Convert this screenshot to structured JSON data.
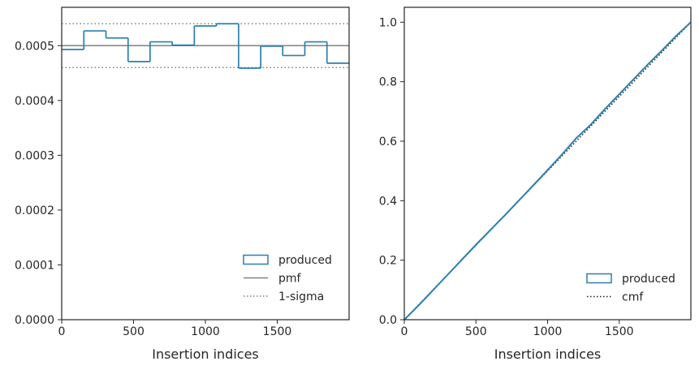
{
  "colors": {
    "produced": "#2a7fb0",
    "reference": "#808080",
    "cmf": "#222222",
    "axis": "#262626"
  },
  "chart_data": [
    {
      "type": "step",
      "xlabel": "Insertion indices",
      "ylabel": "",
      "xlim": [
        0,
        2000
      ],
      "ylim": [
        0,
        0.00057
      ],
      "x_ticks": [
        0,
        500,
        1000,
        1500
      ],
      "x_tick_labels": [
        "0",
        "500",
        "1000",
        "1500"
      ],
      "y_ticks": [
        0,
        0.0001,
        0.0002,
        0.0003,
        0.0004,
        0.0005
      ],
      "y_tick_labels": [
        "0.0000",
        "0.0001",
        "0.0002",
        "0.0003",
        "0.0004",
        "0.0005"
      ],
      "bin_edges": [
        0,
        154,
        308,
        462,
        615,
        769,
        923,
        1077,
        1231,
        1385,
        1538,
        1692,
        1846,
        2000
      ],
      "series": [
        {
          "name": "produced",
          "style": "step",
          "values": [
            0.000493,
            0.000527,
            0.000514,
            0.000471,
            0.000507,
            0.000501,
            0.000536,
            0.00054,
            0.000459,
            0.000499,
            0.000482,
            0.000507,
            0.000468
          ]
        },
        {
          "name": "pmf",
          "style": "solid",
          "y": 0.0005
        },
        {
          "name": "1-sigma",
          "style": "dotted",
          "y": [
            0.00046,
            0.00054
          ]
        }
      ],
      "legend": {
        "position": "lower-right",
        "entries": [
          "produced",
          "pmf",
          "1-sigma"
        ]
      }
    },
    {
      "type": "line",
      "xlabel": "Insertion indices",
      "ylabel": "",
      "xlim": [
        0,
        2000
      ],
      "ylim": [
        0,
        1.05
      ],
      "x_ticks": [
        0,
        500,
        1000,
        1500
      ],
      "x_tick_labels": [
        "0",
        "500",
        "1000",
        "1500"
      ],
      "y_ticks": [
        0,
        0.2,
        0.4,
        0.6,
        0.8,
        1.0
      ],
      "y_tick_labels": [
        "0.0",
        "0.2",
        "0.4",
        "0.6",
        "0.8",
        "1.0"
      ],
      "series": [
        {
          "name": "produced",
          "style": "solid",
          "x": [
            0,
            100,
            200,
            300,
            400,
            500,
            600,
            700,
            800,
            900,
            1000,
            1100,
            1200,
            1300,
            1400,
            1500,
            1600,
            1700,
            1800,
            1900,
            2000
          ],
          "y": [
            0,
            0.048,
            0.099,
            0.15,
            0.201,
            0.252,
            0.301,
            0.35,
            0.401,
            0.452,
            0.503,
            0.555,
            0.61,
            0.655,
            0.708,
            0.758,
            0.808,
            0.858,
            0.906,
            0.955,
            1.0
          ]
        },
        {
          "name": "cmf",
          "style": "dotted",
          "x": [
            0,
            2000
          ],
          "y": [
            0,
            1.0
          ]
        }
      ],
      "legend": {
        "position": "lower-right",
        "entries": [
          "produced",
          "cmf"
        ]
      }
    }
  ]
}
